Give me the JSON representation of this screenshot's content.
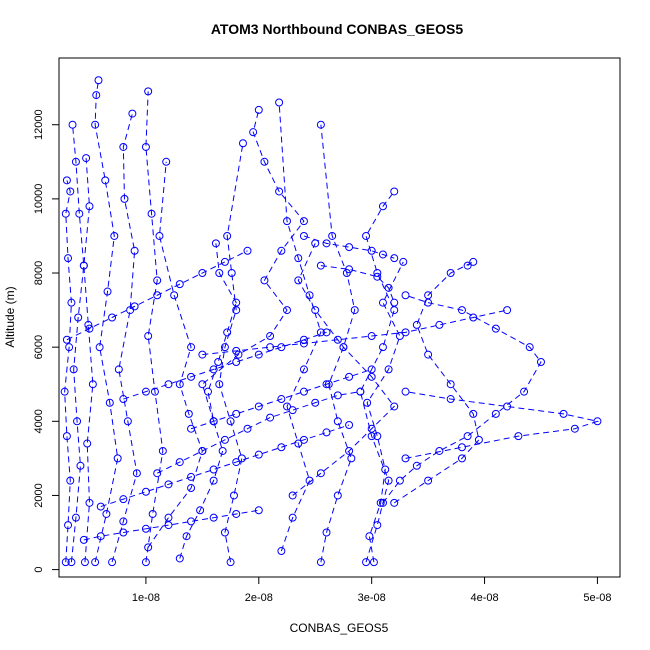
{
  "chart_data": {
    "type": "scatter",
    "title": "ATOM3 Northbound CONBAS_GEOS5",
    "xlabel": "CONBAS_GEOS5",
    "ylabel": "Altitude (m)",
    "xlim": [
      2.3e-09,
      5.2e-08
    ],
    "ylim": [
      -200,
      13800
    ],
    "xticks": [
      1e-08,
      2e-08,
      3e-08,
      4e-08,
      5e-08
    ],
    "xtick_labels": [
      "1e-08",
      "2e-08",
      "3e-08",
      "4e-08",
      "5e-08"
    ],
    "yticks": [
      0,
      2000,
      4000,
      6000,
      8000,
      10000,
      12000
    ],
    "ytick_labels": [
      "0",
      "2000",
      "4000",
      "6000",
      "8000",
      "10000",
      "12000"
    ],
    "marker": "open-circle",
    "color": "#0000ff",
    "series": [
      {
        "name": "",
        "x": [
          2.9e-09,
          3.1e-09,
          3.3e-09,
          3e-09,
          2.8e-09,
          3.2e-09,
          3.4e-09,
          3.1e-09,
          2.9e-09,
          3.3e-09,
          3e-09
        ],
        "y": [
          200,
          1200,
          2400,
          3600,
          4800,
          6000,
          7200,
          8400,
          9600,
          10200,
          10500
        ]
      },
      {
        "name": "",
        "x": [
          3.4e-09,
          3.8e-09,
          4.2e-09,
          3.9e-09,
          3.6e-09,
          4e-09,
          4.5e-09,
          4.1e-09,
          3.8e-09,
          3.5e-09
        ],
        "y": [
          200,
          1400,
          2800,
          4000,
          5400,
          6800,
          8200,
          9600,
          11000,
          12000
        ]
      },
      {
        "name": "",
        "x": [
          4.6e-09,
          5e-09,
          4.8e-09,
          5.3e-09,
          4.9e-09,
          4.5e-09,
          5e-09,
          4.7e-09
        ],
        "y": [
          200,
          1800,
          3400,
          5000,
          6600,
          8200,
          9800,
          11100
        ]
      },
      {
        "name": "",
        "x": [
          5.5e-09,
          6.5e-09,
          7.5e-09,
          6.8e-09,
          5.9e-09,
          6.6e-09,
          7.2e-09,
          6.4e-09,
          5.5e-09,
          5.6e-09,
          5.8e-09
        ],
        "y": [
          200,
          1500,
          3000,
          4500,
          6000,
          7500,
          9000,
          10500,
          12000,
          12800,
          13200
        ]
      },
      {
        "name": "",
        "x": [
          7e-09,
          8e-09,
          9.2e-09,
          8.4e-09,
          7.6e-09,
          8.6e-09,
          9e-09,
          8.1e-09,
          8e-09,
          8.8e-09
        ],
        "y": [
          200,
          1300,
          2600,
          4000,
          5400,
          7000,
          8600,
          10000,
          11400,
          12300
        ]
      },
      {
        "name": "",
        "x": [
          1e-08,
          1.06e-08,
          1.15e-08,
          1.08e-08,
          1.02e-08,
          1.1e-08,
          1.05e-08,
          1e-08,
          1.02e-08
        ],
        "y": [
          200,
          1500,
          3200,
          4800,
          6300,
          7800,
          9600,
          11400,
          12900
        ]
      },
      {
        "name": "",
        "x": [
          1.02e-08,
          1.2e-08,
          1.4e-08,
          1.5e-08,
          1.38e-08,
          1.3e-08,
          1.4e-08,
          1.25e-08,
          1.12e-08,
          1.18e-08
        ],
        "y": [
          600,
          1400,
          2200,
          3200,
          4200,
          5000,
          6000,
          7400,
          9000,
          11000
        ]
      },
      {
        "name": "",
        "x": [
          1.3e-08,
          1.36e-08,
          1.48e-08,
          1.6e-08,
          1.68e-08,
          1.6e-08,
          1.55e-08,
          1.64e-08,
          1.72e-08,
          1.8e-08,
          1.65e-08,
          1.62e-08
        ],
        "y": [
          300,
          900,
          1600,
          2400,
          3200,
          4000,
          4800,
          5600,
          6400,
          7200,
          8000,
          8800
        ]
      },
      {
        "name": "",
        "x": [
          1.75e-08,
          1.7e-08,
          1.78e-08,
          1.85e-08,
          1.75e-08,
          1.65e-08,
          1.7e-08,
          1.8e-08,
          1.76e-08,
          1.72e-08,
          1.86e-08
        ],
        "y": [
          200,
          1000,
          2000,
          3000,
          4000,
          5000,
          6000,
          7000,
          8000,
          9000,
          11500
        ]
      },
      {
        "name": "",
        "x": [
          1.6e-08,
          1.5e-08,
          1.82e-08,
          2.1e-08,
          2.25e-08,
          2.05e-08,
          2.2e-08,
          2.4e-08,
          2.18e-08,
          2.05e-08,
          1.95e-08,
          2e-08
        ],
        "y": [
          4000,
          5000,
          5800,
          6300,
          7000,
          7800,
          8600,
          9400,
          10200,
          11000,
          11800,
          12400
        ]
      },
      {
        "name": "",
        "x": [
          2.2e-08,
          2.3e-08,
          2.45e-08,
          2.35e-08,
          2.25e-08,
          2.4e-08,
          2.55e-08,
          2.45e-08,
          2.35e-08,
          2.25e-08,
          2.18e-08
        ],
        "y": [
          500,
          1400,
          2400,
          3400,
          4400,
          5400,
          6400,
          7400,
          8400,
          9400,
          12600
        ]
      },
      {
        "name": "",
        "x": [
          2.55e-08,
          2.6e-08,
          2.7e-08,
          2.82e-08,
          2.7e-08,
          2.62e-08,
          2.75e-08,
          2.85e-08,
          2.78e-08,
          2.65e-08,
          2.55e-08
        ],
        "y": [
          200,
          1000,
          2000,
          3000,
          4000,
          5000,
          6000,
          7000,
          8000,
          9000,
          12000
        ]
      },
      {
        "name": "",
        "x": [
          2.95e-08,
          3.05e-08,
          3.15e-08,
          3e-08,
          2.9e-08,
          3.1e-08,
          3.2e-08,
          3.05e-08,
          2.95e-08,
          3.1e-08,
          3.2e-08
        ],
        "y": [
          200,
          1200,
          2400,
          3600,
          4800,
          6000,
          7000,
          8000,
          9000,
          9800,
          10200
        ]
      },
      {
        "name": "",
        "x": [
          3.02e-08,
          2.98e-08,
          3.08e-08,
          3.12e-08,
          3.05e-08,
          2.96e-08,
          3.15e-08,
          3.25e-08,
          3.1e-08,
          3.28e-08
        ],
        "y": [
          200,
          900,
          1800,
          2700,
          3600,
          4500,
          5400,
          6300,
          7200,
          8300
        ]
      },
      {
        "name": "",
        "x": [
          3.1e-08,
          3.25e-08,
          3.4e-08,
          3.6e-08,
          3.85e-08,
          4.1e-08,
          4.35e-08,
          4.5e-08,
          4.4e-08,
          4.1e-08,
          3.8e-08,
          3.5e-08,
          3.3e-08
        ],
        "y": [
          1800,
          2400,
          2800,
          3200,
          3600,
          4200,
          4800,
          5600,
          6000,
          6500,
          7000,
          7200,
          7400
        ]
      },
      {
        "name": "",
        "x": [
          3.3e-08,
          3.8e-08,
          4.3e-08,
          4.8e-08,
          5e-08,
          4.7e-08,
          4.2e-08,
          3.7e-08,
          3.3e-08
        ],
        "y": [
          3000,
          3300,
          3600,
          3800,
          4000,
          4200,
          4400,
          4600,
          4800
        ]
      },
      {
        "name": "",
        "x": [
          3.2e-08,
          3.5e-08,
          3.8e-08,
          3.95e-08,
          3.9e-08,
          3.7e-08,
          3.5e-08,
          3.4e-08,
          3.5e-08,
          3.7e-08,
          3.9e-08,
          3.85e-08
        ],
        "y": [
          1800,
          2400,
          3000,
          3500,
          4200,
          5000,
          5800,
          6600,
          7400,
          8000,
          8300,
          8200
        ]
      },
      {
        "name": "",
        "x": [
          2.3e-08,
          2.55e-08,
          2.8e-08,
          3e-08,
          3.2e-08,
          3e-08,
          2.75e-08,
          2.5e-08,
          2.35e-08,
          2.5e-08
        ],
        "y": [
          2000,
          2600,
          3200,
          3800,
          4400,
          5200,
          6000,
          7000,
          7800,
          8800
        ]
      },
      {
        "name": "",
        "x": [
          2.4e-08,
          2.6e-08,
          2.8e-08,
          3e-08,
          3.1e-08,
          3.2e-08
        ],
        "y": [
          9000,
          8800,
          8700,
          8600,
          8500,
          8400
        ]
      },
      {
        "name": "",
        "x": [
          2.55e-08,
          2.8e-08,
          3.05e-08,
          3.15e-08,
          3.2e-08
        ],
        "y": [
          8200,
          8100,
          7900,
          7600,
          7200
        ]
      },
      {
        "name": "",
        "x": [
          1.5e-08,
          1.8e-08,
          2.1e-08,
          2.4e-08,
          2.7e-08,
          3e-08,
          3.3e-08,
          3.6e-08,
          3.9e-08,
          4.2e-08
        ],
        "y": [
          5800,
          5900,
          6000,
          6100,
          6200,
          6300,
          6400,
          6600,
          6800,
          7000
        ]
      },
      {
        "name": "",
        "x": [
          1.1e-08,
          1.3e-08,
          1.5e-08,
          1.7e-08,
          1.9e-08,
          2.1e-08,
          2.3e-08,
          2.5e-08,
          2.7e-08,
          2.9e-08
        ],
        "y": [
          2600,
          2900,
          3200,
          3500,
          3800,
          4100,
          4300,
          4500,
          4700,
          4800
        ]
      },
      {
        "name": "",
        "x": [
          6e-09,
          8e-09,
          1e-08,
          1.2e-08,
          1.4e-08,
          1.6e-08,
          1.8e-08,
          2e-08,
          2.2e-08,
          2.4e-08,
          2.6e-08,
          2.8e-08
        ],
        "y": [
          1700,
          1900,
          2100,
          2300,
          2500,
          2700,
          2900,
          3100,
          3300,
          3500,
          3700,
          3900
        ]
      },
      {
        "name": "",
        "x": [
          4.5e-09,
          6e-09,
          8e-09,
          1e-08,
          1.2e-08,
          1.4e-08,
          1.6e-08,
          1.8e-08,
          2e-08
        ],
        "y": [
          800,
          900,
          1000,
          1100,
          1200,
          1300,
          1400,
          1500,
          1600
        ]
      },
      {
        "name": "",
        "x": [
          1.4e-08,
          1.6e-08,
          1.8e-08,
          2e-08,
          2.2e-08,
          2.4e-08,
          2.6e-08,
          2.8e-08,
          3e-08
        ],
        "y": [
          3800,
          4000,
          4200,
          4400,
          4600,
          4800,
          5000,
          5200,
          5400
        ]
      },
      {
        "name": "",
        "x": [
          8e-09,
          1e-08,
          1.2e-08,
          1.4e-08,
          1.6e-08,
          1.8e-08,
          2e-08,
          2.2e-08,
          2.4e-08,
          2.6e-08
        ],
        "y": [
          4600,
          4800,
          5000,
          5200,
          5400,
          5600,
          5800,
          6000,
          6200,
          6400
        ]
      },
      {
        "name": "",
        "x": [
          3e-09,
          5e-09,
          7e-09,
          9e-09,
          1.1e-08,
          1.3e-08,
          1.5e-08,
          1.7e-08,
          1.9e-08
        ],
        "y": [
          6200,
          6500,
          6800,
          7100,
          7400,
          7700,
          8000,
          8300,
          8600
        ]
      }
    ]
  }
}
